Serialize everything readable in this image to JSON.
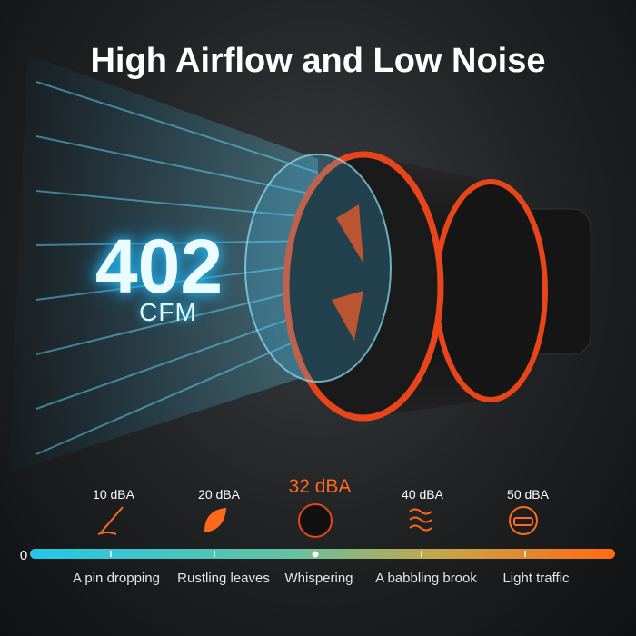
{
  "header": {
    "title": "High Airflow and Low Noise"
  },
  "airflow": {
    "value": "402",
    "unit": "CFM"
  },
  "scale": {
    "start": "0",
    "levels": [
      {
        "level": "10 dBA",
        "description": "A pin dropping"
      },
      {
        "level": "20 dBA",
        "description": "Rustling leaves"
      },
      {
        "level": "32 dBA",
        "description": "Whispering"
      },
      {
        "level": "40 dBA",
        "description": "A babbling brook"
      },
      {
        "level": "50 dBA",
        "description": "Light traffic"
      }
    ]
  }
}
